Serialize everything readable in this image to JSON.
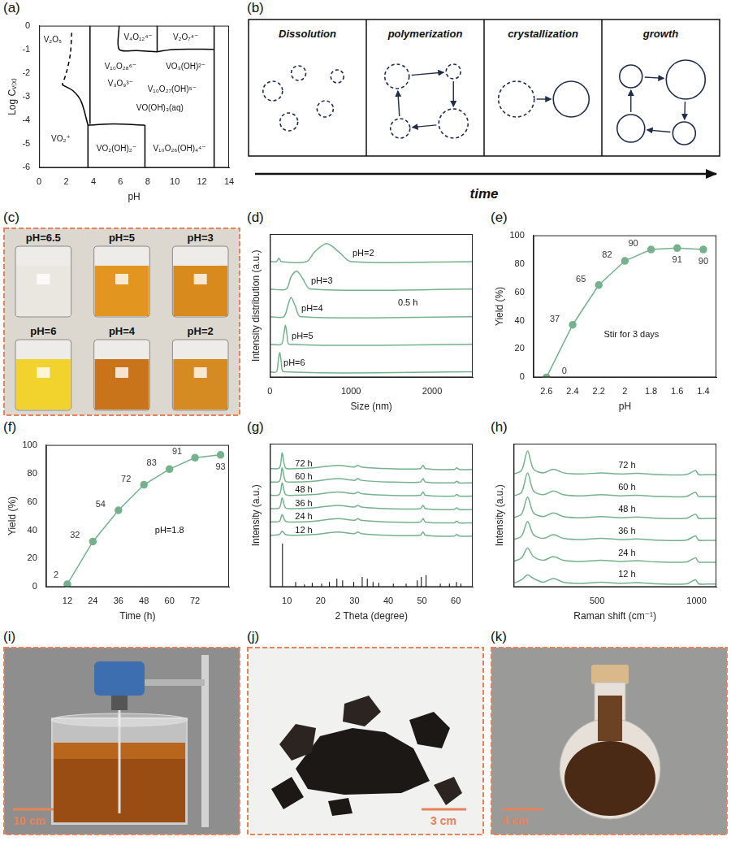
{
  "chart_data": [
    {
      "panel": "(a)",
      "type": "line",
      "x_label": "pH",
      "y_label": "Log Cᵥ₍ₓ₎",
      "xlim": [
        0,
        14
      ],
      "xticks": [
        0,
        2,
        4,
        6,
        8,
        10,
        12,
        14
      ],
      "ylim": [
        -6,
        0
      ],
      "yticks": [
        -6,
        -5,
        -4,
        -3,
        -2,
        -1,
        0
      ],
      "grid": false,
      "color": "#000000",
      "series": [
        {
          "x": [
            2.4,
            2.3,
            2.0,
            1.7
          ],
          "values": [
            -0.3,
            -1.2,
            -2.0,
            -2.5
          ],
          "line_style": "dashed"
        },
        {
          "x": [
            1.7,
            2.5,
            3.1,
            3.6
          ],
          "values": [
            -2.5,
            -2.75,
            -3.2,
            -4.2
          ]
        },
        {
          "x": [
            3.6,
            3.6
          ],
          "values": [
            -4.2,
            -6
          ]
        },
        {
          "x": [
            3.75,
            3.75
          ],
          "values": [
            0,
            -4.15
          ]
        },
        {
          "x": [
            3.6,
            5.5,
            7.8
          ],
          "values": [
            -4.2,
            -4.15,
            -4.2
          ]
        },
        {
          "x": [
            7.8,
            7.8
          ],
          "values": [
            -4.2,
            -6
          ]
        },
        {
          "x": [
            5.9,
            5.9,
            7.2,
            8.7
          ],
          "values": [
            0,
            -1.0,
            -1.05,
            -1.1
          ]
        },
        {
          "x": [
            8.7,
            8.7
          ],
          "values": [
            0,
            -1.1
          ]
        },
        {
          "x": [
            8.7,
            10,
            12.9
          ],
          "values": [
            -1.1,
            -1.0,
            -1.0
          ]
        },
        {
          "x": [
            12.9,
            12.9
          ],
          "values": [
            0,
            -6
          ]
        }
      ],
      "annotations": [
        {
          "text": "V₂O₅",
          "x": 1.0,
          "y": -0.6
        },
        {
          "text": "V₄O₁₂⁴⁻",
          "x": 7.3,
          "y": -0.5
        },
        {
          "text": "V₂O₇⁴⁻",
          "x": 10.8,
          "y": -0.5
        },
        {
          "text": "V₁₀O₂₈⁶⁻",
          "x": 6.0,
          "y": -1.75
        },
        {
          "text": "VO₃(OH)²⁻",
          "x": 10.8,
          "y": -1.75
        },
        {
          "text": "V₃O₉³⁻",
          "x": 6.0,
          "y": -2.45
        },
        {
          "text": "V₁₀O₂₇(OH)⁵⁻",
          "x": 9.8,
          "y": -2.7
        },
        {
          "text": "VO(OH)₃(aq)",
          "x": 8.9,
          "y": -3.5
        },
        {
          "text": "VO₂⁺",
          "x": 1.6,
          "y": -4.8
        },
        {
          "text": "VO₂(OH)₂⁻",
          "x": 5.7,
          "y": -5.2
        },
        {
          "text": "V₁₀O₂₆(OH)₄⁴⁻",
          "x": 10.35,
          "y": -5.2
        }
      ]
    },
    {
      "panel": "(d)",
      "type": "line",
      "x_label": "Size (nm)",
      "y_label": "Intensity distribution (a.u.)",
      "xlim": [
        0,
        2500
      ],
      "xticks": [
        0,
        1000,
        2000
      ],
      "ylim": [
        -0.2,
        5
      ],
      "tick_labels": "x",
      "grid": false,
      "color": "#74b28d",
      "series": [
        {
          "x": [
            0,
            80,
            100,
            120,
            140,
            170,
            2500
          ],
          "values": [
            0,
            0,
            0.35,
            0.7,
            0.35,
            0,
            0
          ]
        },
        {
          "x": [
            0,
            140,
            170,
            190,
            210,
            240,
            2500
          ],
          "values": [
            1,
            1,
            1.35,
            1.7,
            1.35,
            1,
            1
          ]
        },
        {
          "x": [
            0,
            170,
            220,
            260,
            310,
            380,
            2500
          ],
          "values": [
            2,
            2,
            2.4,
            2.7,
            2.4,
            2,
            2
          ]
        },
        {
          "x": [
            0,
            200,
            260,
            330,
            400,
            500,
            2500
          ],
          "values": [
            3,
            3,
            3.45,
            3.65,
            3.4,
            3,
            3
          ]
        },
        {
          "x": [
            0,
            80,
            110,
            140,
            450,
            550,
            700,
            850,
            1000,
            2500
          ],
          "values": [
            4,
            4,
            4.12,
            4,
            4,
            4.35,
            4.65,
            4.35,
            4,
            4
          ]
        }
      ],
      "annotations": [
        {
          "text": "pH=6",
          "x": 300,
          "y": 0.3
        },
        {
          "text": "pH=5",
          "x": 400,
          "y": 1.3
        },
        {
          "text": "pH=4",
          "x": 520,
          "y": 2.3
        },
        {
          "text": "pH=3",
          "x": 640,
          "y": 3.3
        },
        {
          "text": "pH=2",
          "x": 1150,
          "y": 4.3
        },
        {
          "text": "0.5 h",
          "x": 1700,
          "y": 2.5
        }
      ]
    },
    {
      "panel": "(e)",
      "type": "line",
      "x_label": "pH",
      "y_label": "Yield (%)",
      "x": [
        2.6,
        2.4,
        2.2,
        2,
        1.8,
        1.6,
        1.4
      ],
      "values": [
        0,
        37,
        65,
        82,
        90,
        91,
        90
      ],
      "xlim": [
        2.7,
        1.3
      ],
      "xticks": [
        2.6,
        2.4,
        2.2,
        2,
        1.8,
        1.6,
        1.4
      ],
      "ylim": [
        0,
        100
      ],
      "yticks": [
        0,
        20,
        40,
        60,
        80,
        100
      ],
      "grid": false,
      "color": "#74b28d",
      "marker": "circle",
      "data_labels": true,
      "annotations": [
        {
          "text": "Stir for 3 days",
          "x": 1.95,
          "y": 30
        }
      ]
    },
    {
      "panel": "(f)",
      "type": "line",
      "x_label": "Time (h)",
      "y_label": "Yield (%)",
      "x": [
        12,
        24,
        36,
        48,
        60,
        72,
        84
      ],
      "values": [
        2,
        32,
        54,
        72,
        83,
        91,
        93
      ],
      "xlim": [
        2,
        88
      ],
      "xticks": [
        12,
        24,
        36,
        48,
        60,
        72
      ],
      "ylim": [
        0,
        100
      ],
      "yticks": [
        0,
        20,
        40,
        60,
        80,
        100
      ],
      "grid": false,
      "color": "#74b28d",
      "marker": "circle",
      "data_labels": true,
      "annotations": [
        {
          "text": "pH=1.8",
          "x": 60,
          "y": 40
        }
      ]
    },
    {
      "panel": "(g)",
      "type": "line",
      "x_label": "2 Theta (degree)",
      "y_label": "Intensity (a.u.)",
      "xlim": [
        5,
        65
      ],
      "xticks": [
        10,
        20,
        30,
        40,
        50,
        60
      ],
      "ylim": [
        0,
        8.6
      ],
      "tick_labels": "x",
      "grid": false,
      "color": "#74b28d",
      "series": [
        {
          "x": [
            5,
            7.8,
            8.6,
            9.6,
            12,
            18,
            25,
            30,
            31,
            32,
            40,
            49.5,
            50.3,
            51,
            59.5,
            60.3,
            61,
            65
          ],
          "values": [
            3.1,
            3.15,
            3.35,
            3.15,
            3.1,
            3.15,
            3.3,
            3.2,
            3.3,
            3.2,
            3.1,
            3.1,
            3.3,
            3.1,
            3.05,
            3.15,
            3.05,
            3.05
          ]
        },
        {
          "x": [
            5,
            7.8,
            8.6,
            9.6,
            12,
            18,
            25,
            30,
            31,
            32,
            40,
            49.5,
            50.3,
            51,
            59.5,
            60.3,
            61,
            65
          ],
          "values": [
            3.9,
            3.95,
            4.35,
            3.95,
            3.9,
            3.95,
            4.1,
            4.0,
            4.1,
            4.0,
            3.9,
            3.9,
            4.1,
            3.9,
            3.85,
            3.95,
            3.85,
            3.85
          ]
        },
        {
          "x": [
            5,
            7.8,
            8.6,
            9.6,
            12,
            18,
            25,
            30,
            31,
            32,
            40,
            49.5,
            50.3,
            51,
            59.5,
            60.3,
            61,
            65
          ],
          "values": [
            4.7,
            4.75,
            5.35,
            4.75,
            4.7,
            4.75,
            4.9,
            4.8,
            4.9,
            4.8,
            4.7,
            4.7,
            4.9,
            4.7,
            4.65,
            4.75,
            4.65,
            4.65
          ]
        },
        {
          "x": [
            5,
            7.8,
            8.6,
            9.6,
            12,
            18,
            25,
            30,
            31,
            32,
            40,
            49.5,
            50.3,
            51,
            59.5,
            60.3,
            61,
            65
          ],
          "values": [
            5.5,
            5.55,
            6.25,
            5.55,
            5.5,
            5.55,
            5.7,
            5.6,
            5.7,
            5.6,
            5.5,
            5.5,
            5.7,
            5.5,
            5.45,
            5.55,
            5.45,
            5.45
          ]
        },
        {
          "x": [
            5,
            7.8,
            8.6,
            9.6,
            12,
            18,
            25,
            30,
            31,
            32,
            40,
            49.5,
            50.3,
            51,
            59.5,
            60.3,
            61,
            65
          ],
          "values": [
            6.3,
            6.35,
            7.15,
            6.35,
            6.3,
            6.35,
            6.5,
            6.4,
            6.5,
            6.4,
            6.3,
            6.3,
            6.5,
            6.3,
            6.25,
            6.35,
            6.25,
            6.25
          ]
        },
        {
          "x": [
            5,
            7.8,
            8.6,
            9.6,
            12,
            18,
            25,
            30,
            31,
            32,
            40,
            49.5,
            50.3,
            51,
            59.5,
            60.3,
            61,
            65
          ],
          "values": [
            7.1,
            7.15,
            8.05,
            7.15,
            7.1,
            7.15,
            7.3,
            7.2,
            7.3,
            7.2,
            7.1,
            7.1,
            7.3,
            7.1,
            7.05,
            7.15,
            7.05,
            7.05
          ]
        },
        {
          "type": "stick",
          "color": "#000000",
          "x": [
            8.7,
            12.6,
            15.2,
            17.5,
            20.3,
            22.6,
            24.8,
            26.5,
            29.8,
            32.3,
            33.8,
            35.5,
            37.2,
            41.5,
            45.3,
            48.6,
            49.8,
            51.2,
            55.4,
            58.1,
            60.2,
            61.5
          ],
          "values": [
            2.6,
            0.3,
            0.15,
            0.25,
            0.2,
            0.3,
            0.5,
            0.4,
            0.3,
            0.6,
            0.5,
            0.3,
            0.25,
            0.2,
            0.2,
            0.4,
            0.6,
            0.7,
            0.2,
            0.2,
            0.3,
            0.2
          ]
        }
      ],
      "annotations": [
        {
          "text": "12 h",
          "x": 15,
          "y": 3.4
        },
        {
          "text": "24 h",
          "x": 15,
          "y": 4.2
        },
        {
          "text": "36 h",
          "x": 15,
          "y": 5.0
        },
        {
          "text": "48 h",
          "x": 15,
          "y": 5.8
        },
        {
          "text": "60 h",
          "x": 15,
          "y": 6.6
        },
        {
          "text": "72 h",
          "x": 15,
          "y": 7.4
        }
      ]
    },
    {
      "panel": "(h)",
      "type": "line",
      "x_label": "Raman shift (cm⁻¹)",
      "y_label": "Intensity (a.u.)",
      "xlim": [
        80,
        1100
      ],
      "xticks": [
        500,
        1000
      ],
      "ylim": [
        -0.1,
        5.8
      ],
      "tick_labels": "x",
      "grid": false,
      "color": "#74b28d",
      "series": [
        {
          "x": [
            80,
            120,
            150,
            180,
            230,
            280,
            330,
            420,
            520,
            620,
            700,
            800,
            950,
            995,
            1010,
            1050,
            1100
          ],
          "values": [
            0.05,
            0.2,
            0.4,
            0.25,
            0.1,
            0.25,
            0.1,
            0.05,
            0.1,
            0.05,
            0.08,
            0.03,
            0.03,
            0.2,
            0.03,
            0.02,
            0.02
          ]
        },
        {
          "x": [
            80,
            120,
            150,
            180,
            230,
            280,
            330,
            420,
            520,
            620,
            700,
            800,
            950,
            995,
            1010,
            1050,
            1100
          ],
          "values": [
            0.95,
            1.1,
            1.5,
            1.15,
            1.0,
            1.15,
            1.0,
            0.95,
            1.0,
            0.95,
            0.98,
            0.93,
            0.93,
            1.1,
            0.93,
            0.92,
            0.92
          ]
        },
        {
          "x": [
            80,
            120,
            150,
            180,
            230,
            280,
            330,
            420,
            520,
            620,
            700,
            800,
            950,
            995,
            1010,
            1050,
            1100
          ],
          "values": [
            1.85,
            2.0,
            2.6,
            2.05,
            1.9,
            2.05,
            1.9,
            1.85,
            1.9,
            1.85,
            1.88,
            1.83,
            1.83,
            2.0,
            1.83,
            1.82,
            1.82
          ]
        },
        {
          "x": [
            80,
            120,
            150,
            180,
            230,
            280,
            330,
            420,
            520,
            620,
            700,
            800,
            950,
            995,
            1010,
            1050,
            1100
          ],
          "values": [
            2.75,
            2.9,
            3.6,
            2.95,
            2.8,
            2.95,
            2.8,
            2.75,
            2.8,
            2.75,
            2.78,
            2.73,
            2.73,
            2.9,
            2.73,
            2.72,
            2.72
          ]
        },
        {
          "x": [
            80,
            120,
            150,
            180,
            230,
            280,
            330,
            420,
            520,
            620,
            700,
            800,
            950,
            995,
            1010,
            1050,
            1100
          ],
          "values": [
            3.65,
            3.8,
            4.6,
            3.85,
            3.7,
            3.85,
            3.7,
            3.65,
            3.7,
            3.65,
            3.68,
            3.63,
            3.63,
            3.8,
            3.63,
            3.62,
            3.62
          ]
        },
        {
          "x": [
            80,
            120,
            150,
            180,
            230,
            280,
            330,
            420,
            520,
            620,
            700,
            800,
            950,
            995,
            1010,
            1050,
            1100
          ],
          "values": [
            4.55,
            4.7,
            5.5,
            4.75,
            4.6,
            4.75,
            4.6,
            4.55,
            4.6,
            4.55,
            4.58,
            4.53,
            4.53,
            4.7,
            4.53,
            4.52,
            4.52
          ]
        }
      ],
      "annotations": [
        {
          "text": "12 h",
          "x": 650,
          "y": 0.4
        },
        {
          "text": "24 h",
          "x": 650,
          "y": 1.3
        },
        {
          "text": "36 h",
          "x": 650,
          "y": 2.2
        },
        {
          "text": "48 h",
          "x": 650,
          "y": 3.1
        },
        {
          "text": "60 h",
          "x": 650,
          "y": 4.0
        },
        {
          "text": "72 h",
          "x": 650,
          "y": 4.9
        }
      ]
    }
  ],
  "diagram": {
    "panel": "(b)",
    "steps": [
      "Dissolution",
      "polymerization",
      "crystallization",
      "growth"
    ],
    "arrow_label": "time"
  },
  "photos": [
    {
      "panel": "(c)",
      "beakers": [
        {
          "label": "pH=6.5",
          "color": "#e9e7df"
        },
        {
          "label": "pH=5",
          "color": "#e3961f"
        },
        {
          "label": "pH=3",
          "color": "#d98a1c"
        },
        {
          "label": "pH=6",
          "color": "#f2d22c"
        },
        {
          "label": "pH=4",
          "color": "#c9731a"
        },
        {
          "label": "pH=2",
          "color": "#d68a22"
        }
      ]
    },
    {
      "panel": "(i)",
      "scale_bar": "10 cm"
    },
    {
      "panel": "(j)",
      "scale_bar": "3 cm"
    },
    {
      "panel": "(k)",
      "scale_bar": "4 cm"
    }
  ]
}
